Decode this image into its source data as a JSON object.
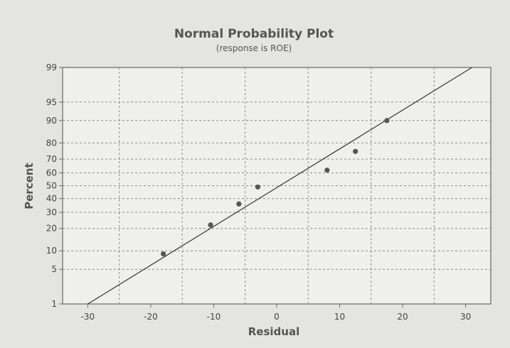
{
  "chart_data": {
    "type": "scatter",
    "title": "Normal Probability Plot",
    "subtitle": "(response is ROE)",
    "xlabel": "Residual",
    "ylabel": "Percent",
    "xlim": [
      -34,
      34
    ],
    "ylim": [
      1,
      99
    ],
    "y_scale": "normal-probability",
    "x_ticks": [
      -30,
      -20,
      -10,
      0,
      10,
      20,
      30
    ],
    "x_tick_labels": [
      "-30",
      "-20",
      "-10",
      "0",
      "10",
      "20",
      "30"
    ],
    "x_gridlines": [
      -25,
      -15,
      -5,
      5,
      15,
      25
    ],
    "y_ticks": [
      1,
      5,
      10,
      20,
      30,
      40,
      50,
      60,
      70,
      80,
      90,
      95,
      99
    ],
    "y_tick_labels": [
      "1",
      "5",
      "10",
      "20",
      "30",
      "40",
      "50",
      "60",
      "70",
      "80",
      "90",
      "95",
      "99"
    ],
    "grid": true,
    "points": [
      {
        "x": -18,
        "y": 9
      },
      {
        "x": -10.5,
        "y": 22
      },
      {
        "x": -6,
        "y": 36
      },
      {
        "x": -3,
        "y": 49
      },
      {
        "x": 8,
        "y": 62
      },
      {
        "x": 12.5,
        "y": 75
      },
      {
        "x": 17.5,
        "y": 90
      }
    ],
    "fit_line": [
      {
        "x": -30,
        "y": 1
      },
      {
        "x": 31,
        "y": 99
      }
    ],
    "colors": {
      "points": "#555555",
      "line": "#333333",
      "grid": "#8a8a8a",
      "frame": "#666666",
      "panel": "#efefed"
    }
  }
}
